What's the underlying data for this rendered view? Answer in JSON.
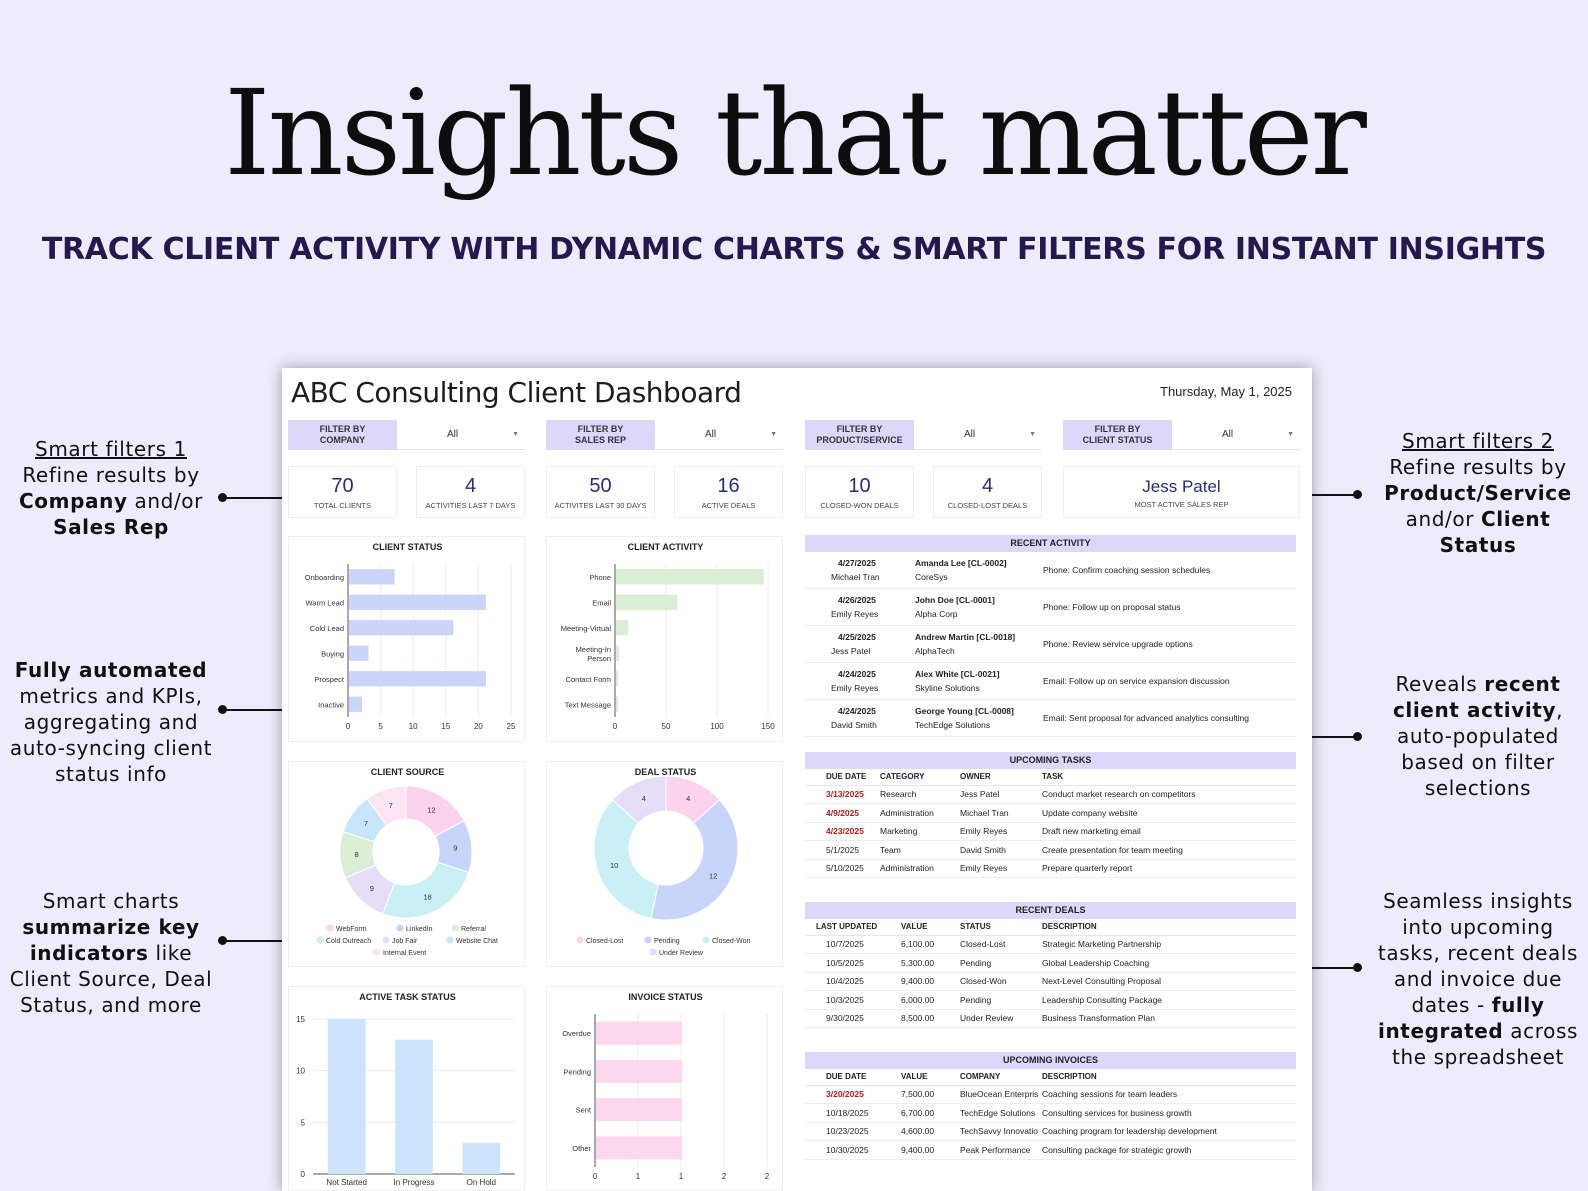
{
  "hero": {
    "title": "Insights that matter",
    "subtitle": "TRACK CLIENT ACTIVITY WITH DYNAMIC CHARTS & SMART FILTERS FOR INSTANT INSIGHTS"
  },
  "notes": {
    "filters1": {
      "heading": "Smart filters 1",
      "line1": "Refine results by",
      "b1": "Company",
      "mid": " and/or",
      "b2": "Sales Rep"
    },
    "automated": {
      "b1": "Fully automated",
      "rest": "metrics and KPIs, aggregating and auto-syncing client status info"
    },
    "charts": {
      "pre": "Smart charts",
      "b1": "summarize key indicators",
      "rest": " like Client Source, Deal Status, and more"
    },
    "filters2": {
      "heading": "Smart filters 2",
      "line1": "Refine results by",
      "b1": "Product/Service",
      "mid": "and/or ",
      "b2": "Client Status"
    },
    "recent": {
      "pre": "Reveals ",
      "b1": "recent client activity",
      "rest": ", auto-populated based on filter selections"
    },
    "seamless": {
      "pre": "Seamless insights into upcoming tasks, recent deals and invoice due dates - ",
      "b1": "fully integrated",
      "rest": " across the spreadsheet"
    }
  },
  "dashboard": {
    "title": "ABC Consulting Client Dashboard",
    "date": "Thursday, May 1, 2025",
    "filters": [
      {
        "label1": "FILTER BY",
        "label2": "COMPANY",
        "value": "All"
      },
      {
        "label1": "FILTER BY",
        "label2": "SALES REP",
        "value": "All"
      },
      {
        "label1": "FILTER BY",
        "label2": "PRODUCT/SERVICE",
        "value": "All"
      },
      {
        "label1": "FILTER BY",
        "label2": "CLIENT STATUS",
        "value": "All"
      }
    ],
    "kpis": [
      {
        "value": "70",
        "label": "TOTAL CLIENTS"
      },
      {
        "value": "4",
        "label": "ACTIVITIES LAST 7 DAYS"
      },
      {
        "value": "50",
        "label": "ACTIVITES LAST 30 DAYS"
      },
      {
        "value": "16",
        "label": "ACTIVE DEALS"
      },
      {
        "value": "10",
        "label": "CLOSED-WON DEALS"
      },
      {
        "value": "4",
        "label": "CLOSED-LOST DEALS"
      },
      {
        "value": "Jess Patel",
        "label": "MOST ACTIVE SALES REP"
      }
    ],
    "recent_activity": {
      "title": "RECENT ACTIVITY",
      "rows": [
        {
          "date": "4/27/2025",
          "owner": "Michael Tran",
          "client": "Amanda Lee [CL-0002]",
          "company": "CoreSys",
          "task": "Phone: Confirm coaching session schedules"
        },
        {
          "date": "4/26/2025",
          "owner": "Emily Reyes",
          "client": "John Doe [CL-0001]",
          "company": "Alpha Corp",
          "task": "Phone: Follow up on proposal status"
        },
        {
          "date": "4/25/2025",
          "owner": "Jess Patel",
          "client": "Andrew Martin [CL-0018]",
          "company": "AlphaTech",
          "task": "Phone: Review service upgrade options"
        },
        {
          "date": "4/24/2025",
          "owner": "Emily Reyes",
          "client": "Alex White [CL-0021]",
          "company": "Skyline Solutions",
          "task": "Email: Follow up on service expansion discussion"
        },
        {
          "date": "4/24/2025",
          "owner": "David Smith",
          "client": "George Young [CL-0008]",
          "company": "TechEdge Solutions",
          "task": "Email: Sent proposal for advanced analytics consulting"
        }
      ]
    },
    "upcoming_tasks": {
      "title": "UPCOMING TASKS",
      "headers": [
        "DUE DATE",
        "CATEGORY",
        "OWNER",
        "TASK"
      ],
      "rows": [
        {
          "due": "3/13/2025",
          "overdue": true,
          "category": "Research",
          "owner": "Jess Patel",
          "task": "Conduct market research on competitors"
        },
        {
          "due": "4/9/2025",
          "overdue": true,
          "category": "Administration",
          "owner": "Michael Tran",
          "task": "Update company website"
        },
        {
          "due": "4/23/2025",
          "overdue": true,
          "category": "Marketing",
          "owner": "Emily Reyes",
          "task": "Draft new marketing email"
        },
        {
          "due": "5/1/2025",
          "overdue": false,
          "category": "Team",
          "owner": "David Smith",
          "task": "Create presentation for team meeting"
        },
        {
          "due": "5/10/2025",
          "overdue": false,
          "category": "Administration",
          "owner": "Emily Reyes",
          "task": "Prepare quarterly report"
        }
      ]
    },
    "recent_deals": {
      "title": "RECENT DEALS",
      "headers": [
        "LAST UPDATED",
        "VALUE",
        "STATUS",
        "DESCRIPTION"
      ],
      "rows": [
        {
          "date": "10/7/2025",
          "value": "6,100.00",
          "status": "Closed-Lost",
          "desc": "Strategic Marketing Partnership"
        },
        {
          "date": "10/5/2025",
          "value": "5,300.00",
          "status": "Pending",
          "desc": "Global Leadership Coaching"
        },
        {
          "date": "10/4/2025",
          "value": "9,400.00",
          "status": "Closed-Won",
          "desc": "Next-Level Consulting Proposal"
        },
        {
          "date": "10/3/2025",
          "value": "6,000.00",
          "status": "Pending",
          "desc": "Leadership Consulting Package"
        },
        {
          "date": "9/30/2025",
          "value": "8,500.00",
          "status": "Under Review",
          "desc": "Business Transformation Plan"
        }
      ]
    },
    "upcoming_invoices": {
      "title": "UPCOMING INVOICES",
      "headers": [
        "DUE DATE",
        "VALUE",
        "COMPANY",
        "DESCRIPTION"
      ],
      "rows": [
        {
          "due": "3/20/2025",
          "overdue": true,
          "value": "7,500.00",
          "company": "BlueOcean Enterpris",
          "desc": "Coaching sessions for team leaders"
        },
        {
          "due": "10/18/2025",
          "overdue": false,
          "value": "6,700.00",
          "company": "TechEdge Solutions",
          "desc": "Consulting services for business growth"
        },
        {
          "due": "10/23/2025",
          "overdue": false,
          "value": "4,600.00",
          "company": "TechSavvy Innovatio",
          "desc": "Coaching program for leadership development"
        },
        {
          "due": "10/30/2025",
          "overdue": false,
          "value": "9,400.00",
          "company": "Peak Performance",
          "desc": "Consulting package for strategic growth"
        }
      ]
    }
  },
  "chart_data": [
    {
      "id": "client-status",
      "type": "bar",
      "orientation": "horizontal",
      "title": "CLIENT STATUS",
      "categories": [
        "Onboarding",
        "Warm Lead",
        "Cold Lead",
        "Buying",
        "Prospect",
        "Inactive"
      ],
      "values": [
        7,
        21,
        16,
        3,
        21,
        2
      ],
      "xlim": [
        0,
        25
      ],
      "ticks": [
        0,
        5,
        10,
        15,
        20,
        25
      ],
      "color": "#cbd5fb"
    },
    {
      "id": "client-activity",
      "type": "bar",
      "orientation": "horizontal",
      "title": "CLIENT ACTIVITY",
      "categories": [
        "Phone",
        "Email",
        "Meeting-Virtual",
        "Meeting-In Person",
        "Contact Form",
        "Text Message"
      ],
      "values": [
        145,
        60,
        12,
        3,
        2,
        2
      ],
      "xlim": [
        0,
        150
      ],
      "ticks": [
        0,
        50,
        100,
        150
      ],
      "color": "#d9eed4"
    },
    {
      "id": "client-source",
      "type": "pie",
      "donut": true,
      "title": "CLIENT SOURCE",
      "slices": [
        {
          "label": "WebForm",
          "value": 12,
          "color": "#fbd3ec"
        },
        {
          "label": "LinkedIn",
          "value": 9,
          "color": "#c9d4fb"
        },
        {
          "label": "Cold Outreach",
          "value": 18,
          "color": "#c9f0f5"
        },
        {
          "label": "Job Fair",
          "value": 9,
          "color": "#e4def9"
        },
        {
          "label": "Referral",
          "value": 8,
          "color": "#d9eed4"
        },
        {
          "label": "Website Chat",
          "value": 7,
          "color": "#c7e6fb"
        },
        {
          "label": "Internal Event",
          "value": 7,
          "color": "#fde4f2"
        }
      ],
      "legend": [
        "WebForm",
        "LinkedIn",
        "Referral",
        "Cold Outreach",
        "Job Fair",
        "Website Chat",
        "Internal Event"
      ]
    },
    {
      "id": "deal-status",
      "type": "pie",
      "donut": true,
      "title": "DEAL STATUS",
      "slices": [
        {
          "label": "Closed-Lost",
          "value": 4,
          "color": "#fbd3ec"
        },
        {
          "label": "Pending",
          "value": 12,
          "color": "#c9d4fb"
        },
        {
          "label": "Closed-Won",
          "value": 10,
          "color": "#c9f0f5"
        },
        {
          "label": "Under Review",
          "value": 4,
          "color": "#e4def9"
        }
      ],
      "legend": [
        "Closed-Lost",
        "Pending",
        "Closed-Won",
        "Under Review"
      ]
    },
    {
      "id": "active-task-status",
      "type": "bar",
      "orientation": "vertical",
      "title": "ACTIVE TASK STATUS",
      "categories": [
        "Not Started",
        "In Progress",
        "On Hold"
      ],
      "values": [
        15,
        13,
        3
      ],
      "ylim": [
        0,
        15
      ],
      "ticks": [
        0,
        5,
        10,
        15
      ],
      "color": "#cde3fb"
    },
    {
      "id": "invoice-status",
      "type": "bar",
      "orientation": "horizontal",
      "title": "INVOICE STATUS",
      "categories": [
        "Overdue",
        "Pending",
        "Sent",
        "Other"
      ],
      "values": [
        1,
        1,
        1,
        1
      ],
      "xlim": [
        0,
        2
      ],
      "ticks": [
        "0",
        "1",
        "1",
        "2",
        "2"
      ],
      "color": "#fcd7ee"
    }
  ]
}
